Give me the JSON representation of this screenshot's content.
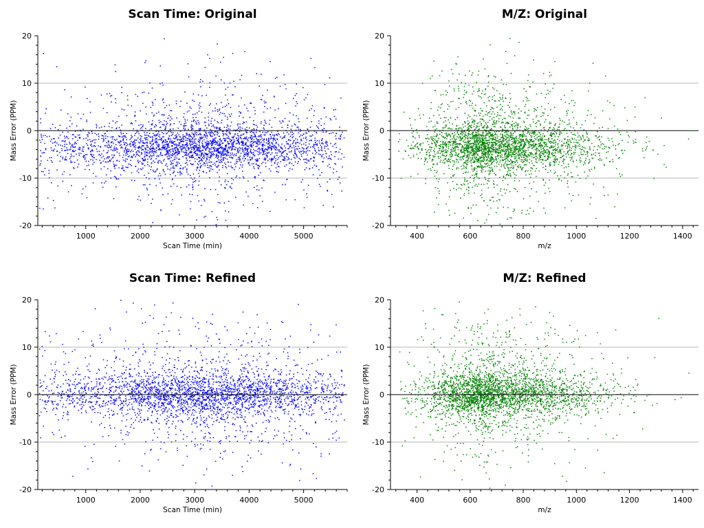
{
  "chart_data": [
    {
      "type": "scatter",
      "title": "Scan Time: Original",
      "xlabel": "Scan Time (min)",
      "ylabel": "Mass Error (PPM)",
      "xlim": [
        120,
        5800
      ],
      "ylim": [
        -20,
        20
      ],
      "xticks": [
        1000,
        2000,
        3000,
        4000,
        5000
      ],
      "yticks": [
        -20,
        -10,
        0,
        10,
        20
      ],
      "minor_x_step": 200,
      "grid": "horizontal at y=-10, 10; zero line at y=0",
      "color": "#0000ff",
      "series": [
        {
          "mode": "x_dist",
          "x_range": [
            150,
            5750
          ],
          "x_center": 3150,
          "x_spread": 1150,
          "core_center": -3.5,
          "core_sd": 2.2,
          "tail_sd": 7,
          "core_frac": 0.62,
          "n_points": 3000,
          "seed": 11
        }
      ]
    },
    {
      "type": "scatter",
      "title": "M/Z: Original",
      "xlabel": "m/z",
      "ylabel": "Mass Error (PPM)",
      "xlim": [
        300,
        1460
      ],
      "ylim": [
        -20,
        20
      ],
      "xticks": [
        400,
        600,
        800,
        1000,
        1200,
        1400
      ],
      "yticks": [
        -20,
        -10,
        0,
        10,
        20
      ],
      "minor_x_step": 40,
      "grid": "horizontal at y=-10, 10; zero line at y=0",
      "color": "#008000",
      "series": [
        {
          "mode": "mz_dist",
          "x_peak": 690,
          "x_left_sd": 140,
          "x_right_sd": 210,
          "x_range": [
            330,
            1450
          ],
          "core_center": -3.5,
          "core_sd": 2.2,
          "tail_sd": 7,
          "core_frac": 0.6,
          "n_points": 3000,
          "seed": 23
        }
      ]
    },
    {
      "type": "scatter",
      "title": "Scan Time: Refined",
      "xlabel": "Scan Time (min)",
      "ylabel": "Mass Error (PPM)",
      "xlim": [
        120,
        5800
      ],
      "ylim": [
        -20,
        20
      ],
      "xticks": [
        1000,
        2000,
        3000,
        4000,
        5000
      ],
      "yticks": [
        -20,
        -10,
        0,
        10,
        20
      ],
      "minor_x_step": 200,
      "grid": "horizontal at y=-10, 10; zero line at y=0",
      "color": "#0000ff",
      "series": [
        {
          "mode": "x_dist",
          "x_range": [
            150,
            5750
          ],
          "x_center": 3150,
          "x_spread": 1150,
          "core_center": 0,
          "core_sd": 2.2,
          "tail_sd": 7,
          "core_frac": 0.62,
          "n_points": 3000,
          "seed": 37
        }
      ]
    },
    {
      "type": "scatter",
      "title": "M/Z: Refined",
      "xlabel": "m/z",
      "ylabel": "Mass Error (PPM)",
      "xlim": [
        300,
        1460
      ],
      "ylim": [
        -20,
        20
      ],
      "xticks": [
        400,
        600,
        800,
        1000,
        1200,
        1400
      ],
      "yticks": [
        -20,
        -10,
        0,
        10,
        20
      ],
      "minor_x_step": 40,
      "grid": "horizontal at y=-10, 10; zero line at y=0",
      "color": "#008000",
      "series": [
        {
          "mode": "mz_dist",
          "x_peak": 690,
          "x_left_sd": 140,
          "x_right_sd": 210,
          "x_range": [
            330,
            1450
          ],
          "core_center": 0,
          "core_sd": 2.2,
          "tail_sd": 7,
          "core_frac": 0.6,
          "n_points": 3000,
          "seed": 53
        }
      ]
    }
  ]
}
